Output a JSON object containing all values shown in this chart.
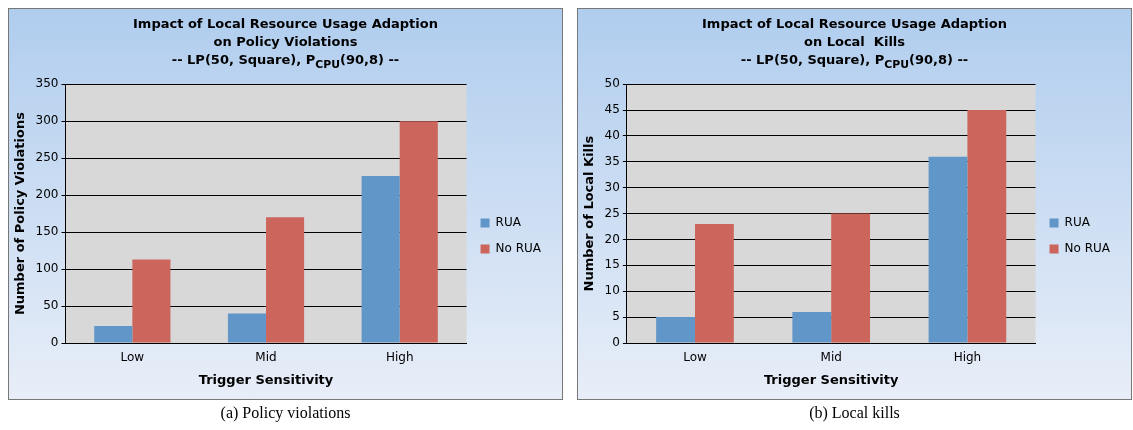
{
  "chart_data": [
    {
      "type": "bar",
      "title": "Impact of Local Resource Usage Adaption\non Policy Violations\n-- LP(50, Square), P$_{CPU}$(90,8) --",
      "xlabel": "Trigger Sensitivity",
      "ylabel": "Number of Policy Violations",
      "categories": [
        "Low",
        "Mid",
        "High"
      ],
      "series": [
        {
          "name": "RUA",
          "color": "#6096c8",
          "values": [
            23,
            40,
            226
          ]
        },
        {
          "name": "No RUA",
          "color": "#cc655c",
          "values": [
            113,
            170,
            300
          ]
        }
      ],
      "ylim": [
        0,
        350
      ],
      "yticks": [
        0,
        50,
        100,
        150,
        200,
        250,
        300,
        350
      ],
      "grid": "y",
      "legend": "right",
      "annotations": [
        "(a) Policy violations"
      ]
    },
    {
      "type": "bar",
      "title": "Impact of Local Resource Usage Adaption\non Local  Kills\n-- LP(50, Square), P$_{CPU}$(90,8) --",
      "xlabel": "Trigger Sensitivity",
      "ylabel": "Number of Local Kills",
      "categories": [
        "Low",
        "Mid",
        "High"
      ],
      "series": [
        {
          "name": "RUA",
          "color": "#6096c8",
          "values": [
            5,
            6,
            36
          ]
        },
        {
          "name": "No RUA",
          "color": "#cc655c",
          "values": [
            23,
            25,
            45
          ]
        }
      ],
      "ylim": [
        0,
        50
      ],
      "yticks": [
        0,
        5,
        10,
        15,
        20,
        25,
        30,
        35,
        40,
        45,
        50
      ],
      "grid": "y",
      "legend": "right",
      "annotations": [
        "(b) Local kills"
      ]
    }
  ]
}
